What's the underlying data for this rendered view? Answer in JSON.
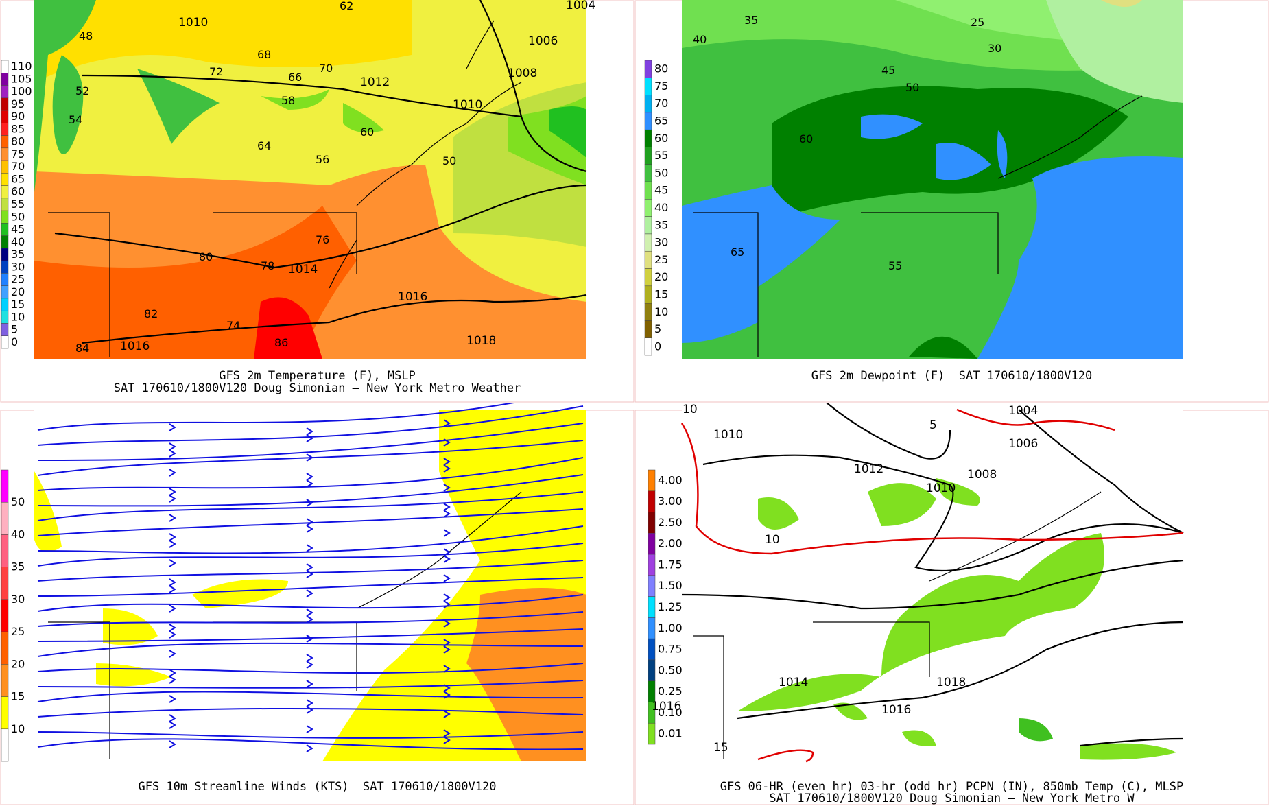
{
  "panels": [
    {
      "id": "temperature",
      "caption_line1": "GFS 2m Temperature (F), MSLP",
      "caption_line2": "SAT 170610/1800V120 Doug Simonian — New York Metro Weather",
      "colorbar": [
        "110",
        "105",
        "100",
        "95",
        "90",
        "85",
        "80",
        "75",
        "70",
        "65",
        "60",
        "55",
        "50",
        "45",
        "40",
        "35",
        "30",
        "25",
        "20",
        "15",
        "10",
        "5",
        "0"
      ],
      "colorbar_colors": [
        "#ffffff",
        "#8000a0",
        "#a020c0",
        "#c00000",
        "#e00000",
        "#ff2020",
        "#ff6000",
        "#ff9030",
        "#ffc000",
        "#ffe000",
        "#f0f040",
        "#c0e040",
        "#80e020",
        "#20c020",
        "#008000",
        "#000080",
        "#0040c0",
        "#2080ff",
        "#40a0ff",
        "#00d0ff",
        "#20e0e0",
        "#8060e0",
        "#ffffff"
      ],
      "isobars": [
        "1010",
        "1012",
        "1014",
        "1016",
        "1016",
        "1018",
        "1006",
        "1008",
        "1010",
        "1004"
      ],
      "temps": [
        "62",
        "64",
        "58",
        "70",
        "68",
        "66",
        "72",
        "56",
        "52",
        "54",
        "60",
        "76",
        "80",
        "82",
        "84",
        "86",
        "74",
        "78",
        "50",
        "48"
      ]
    },
    {
      "id": "dewpoint",
      "caption_line1": "GFS 2m Dewpoint (F)  SAT 170610/1800V120",
      "colorbar": [
        "80",
        "75",
        "70",
        "65",
        "60",
        "55",
        "50",
        "45",
        "40",
        "35",
        "30",
        "25",
        "20",
        "15",
        "10",
        "5",
        "0"
      ],
      "colorbar_colors": [
        "#8040e0",
        "#00e0ff",
        "#00b0f0",
        "#3090ff",
        "#008000",
        "#20a020",
        "#40c040",
        "#70e050",
        "#90f070",
        "#b0f0a0",
        "#d0f0b0",
        "#e0e080",
        "#d0d040",
        "#b0b020",
        "#908010",
        "#806000",
        "#ffffff"
      ],
      "labels": [
        "35",
        "40",
        "45",
        "50",
        "55",
        "60",
        "65",
        "25",
        "30"
      ]
    },
    {
      "id": "streamlines",
      "caption_line1": "GFS 10m Streamline Winds (KTS)  SAT 170610/1800V120",
      "colorbar": [
        "50",
        "40",
        "35",
        "30",
        "25",
        "20",
        "15",
        "10"
      ],
      "colorbar_colors": [
        "#ff00ff",
        "#ffb0c0",
        "#ff6080",
        "#ff4040",
        "#ff0000",
        "#ff6000",
        "#ff9020",
        "#ffff00",
        "#ffffff"
      ]
    },
    {
      "id": "precip",
      "caption_line1": "GFS 06-HR (even hr) 03-hr (odd hr) PCPN (IN), 850mb Temp (C), MLSP",
      "caption_line2": "SAT 170610/1800V120 Doug Simonian — New York Metro W",
      "colorbar": [
        "4.00",
        "3.00",
        "2.50",
        "2.00",
        "1.75",
        "1.50",
        "1.25",
        "1.00",
        "0.75",
        "0.50",
        "0.25",
        "0.10",
        "0.01"
      ],
      "colorbar_colors": [
        "#ff8000",
        "#c00000",
        "#800000",
        "#8000a0",
        "#a040e0",
        "#8080ff",
        "#00e0ff",
        "#3090ff",
        "#0050c0",
        "#004080",
        "#008000",
        "#40c020",
        "#80e020"
      ],
      "isobars": [
        "10",
        "1010",
        "1012",
        "1014",
        "1016",
        "1016",
        "1018",
        "1004",
        "1006",
        "1008",
        "1010"
      ],
      "temps850": [
        "5",
        "10",
        "15"
      ]
    }
  ]
}
